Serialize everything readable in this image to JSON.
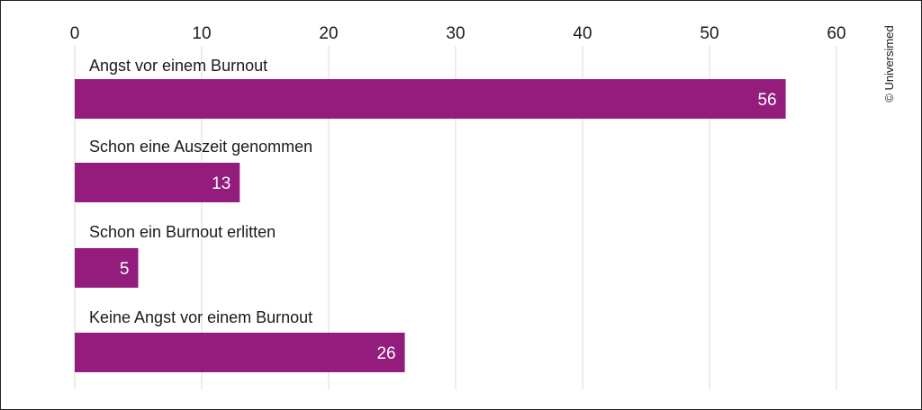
{
  "chart_data": {
    "type": "bar",
    "orientation": "horizontal",
    "categories": [
      "Angst vor einem Burnout",
      "Schon eine Auszeit genommen",
      "Schon ein Burnout erlitten",
      "Keine Angst vor einem Burnout"
    ],
    "values": [
      56,
      13,
      5,
      26
    ],
    "xlim": [
      0,
      60
    ],
    "xticks": [
      0,
      10,
      20,
      30,
      40,
      50,
      60
    ],
    "axis_position": "top",
    "grid": true,
    "bar_color": "#931c7d",
    "grid_color": "#d9d9d9",
    "credit": "© Universimed"
  }
}
